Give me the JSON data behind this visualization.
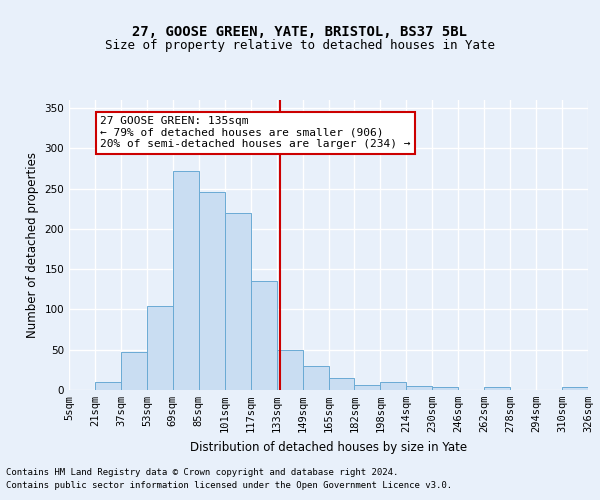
{
  "title1": "27, GOOSE GREEN, YATE, BRISTOL, BS37 5BL",
  "title2": "Size of property relative to detached houses in Yate",
  "xlabel": "Distribution of detached houses by size in Yate",
  "ylabel": "Number of detached properties",
  "bar_labels": [
    "5sqm",
    "21sqm",
    "37sqm",
    "53sqm",
    "69sqm",
    "85sqm",
    "101sqm",
    "117sqm",
    "133sqm",
    "149sqm",
    "165sqm",
    "182sqm",
    "198sqm",
    "214sqm",
    "230sqm",
    "246sqm",
    "262sqm",
    "278sqm",
    "294sqm",
    "310sqm",
    "326sqm"
  ],
  "bar_values": [
    0,
    10,
    47,
    104,
    272,
    246,
    220,
    135,
    50,
    30,
    15,
    6,
    10,
    5,
    4,
    0,
    4,
    0,
    0,
    4
  ],
  "bar_color": "#c9ddf2",
  "bar_edge_color": "#6aaad4",
  "annotation_box_text": "27 GOOSE GREEN: 135sqm\n← 79% of detached houses are smaller (906)\n20% of semi-detached houses are larger (234) →",
  "annotation_box_color": "#ffffff",
  "annotation_box_edge_color": "#cc0000",
  "vline_color": "#cc0000",
  "footer1": "Contains HM Land Registry data © Crown copyright and database right 2024.",
  "footer2": "Contains public sector information licensed under the Open Government Licence v3.0.",
  "bg_color": "#e8f0fa",
  "plot_bg_color": "#e8f0fa",
  "grid_color": "#ffffff",
  "ylim": [
    0,
    360
  ],
  "yticks": [
    0,
    50,
    100,
    150,
    200,
    250,
    300,
    350
  ],
  "title1_fontsize": 10,
  "title2_fontsize": 9,
  "xlabel_fontsize": 8.5,
  "ylabel_fontsize": 8.5,
  "tick_fontsize": 7.5,
  "footer_fontsize": 6.5,
  "annot_fontsize": 8
}
